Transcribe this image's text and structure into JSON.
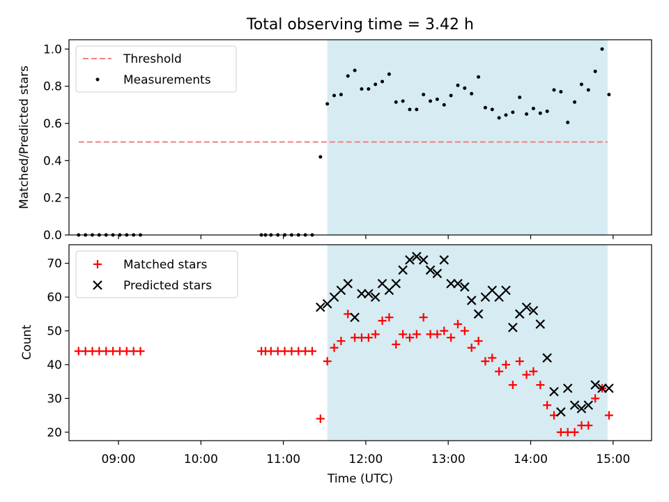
{
  "figure": {
    "title": "Total observing time = 3.42 h",
    "xlabel": "Time (UTC)",
    "x_ticks": [
      "09:00",
      "10:00",
      "11:00",
      "12:00",
      "13:00",
      "14:00",
      "15:00"
    ]
  },
  "chart_data": [
    {
      "type": "scatter",
      "ylabel": "Matched/Predicted stars",
      "xlim": [
        "08:24",
        "15:28"
      ],
      "ylim": [
        0,
        1.05
      ],
      "y_ticks": [
        "0.0",
        "0.2",
        "0.4",
        "0.6",
        "0.8",
        "1.0"
      ],
      "shaded_interval": [
        "11:32",
        "14:56"
      ],
      "shade_color": "#add8e6",
      "legend_position": "upper-left",
      "threshold": {
        "name": "Threshold",
        "value": 0.5,
        "x_range": [
          "08:31",
          "14:56"
        ],
        "color": "#f08080"
      },
      "series": [
        {
          "name": "Measurements",
          "marker": "dot",
          "color": "#000000",
          "x": [
            "08:31",
            "08:36",
            "08:41",
            "08:46",
            "08:51",
            "08:56",
            "09:01",
            "09:06",
            "09:11",
            "09:16",
            "10:44",
            "10:47",
            "10:51",
            "10:56",
            "11:01",
            "11:06",
            "11:11",
            "11:16",
            "11:21",
            "11:27",
            "11:32",
            "11:37",
            "11:42",
            "11:47",
            "11:52",
            "11:57",
            "12:02",
            "12:07",
            "12:12",
            "12:17",
            "12:22",
            "12:27",
            "12:32",
            "12:37",
            "12:42",
            "12:47",
            "12:52",
            "12:57",
            "13:02",
            "13:07",
            "13:12",
            "13:17",
            "13:22",
            "13:27",
            "13:32",
            "13:37",
            "13:42",
            "13:47",
            "13:52",
            "13:57",
            "14:02",
            "14:07",
            "14:12",
            "14:17",
            "14:22",
            "14:27",
            "14:32",
            "14:37",
            "14:42",
            "14:47",
            "14:52",
            "14:57"
          ],
          "y": [
            0,
            0,
            0,
            0,
            0,
            0,
            0,
            0,
            0,
            0,
            0,
            0,
            0,
            0,
            0,
            0,
            0,
            0,
            0,
            0.42,
            0.705,
            0.75,
            0.755,
            0.855,
            0.885,
            0.785,
            0.785,
            0.81,
            0.825,
            0.865,
            0.715,
            0.72,
            0.675,
            0.675,
            0.755,
            0.72,
            0.73,
            0.7,
            0.75,
            0.805,
            0.79,
            0.76,
            0.85,
            0.685,
            0.675,
            0.63,
            0.645,
            0.66,
            0.74,
            0.65,
            0.68,
            0.655,
            0.665,
            0.78,
            0.77,
            0.605,
            0.715,
            0.81,
            0.78,
            0.88,
            1.0,
            0.755
          ]
        }
      ]
    },
    {
      "type": "scatter",
      "ylabel": "Count",
      "xlim": [
        "08:24",
        "15:28"
      ],
      "ylim": [
        17.5,
        75.5
      ],
      "y_ticks": [
        "20",
        "30",
        "40",
        "50",
        "60",
        "70"
      ],
      "shaded_interval": [
        "11:32",
        "14:56"
      ],
      "shade_color": "#add8e6",
      "legend_position": "upper-left",
      "series": [
        {
          "name": "Matched stars",
          "marker": "plus",
          "color": "#ff0000",
          "x": [
            "08:31",
            "08:36",
            "08:41",
            "08:46",
            "08:51",
            "08:56",
            "09:01",
            "09:06",
            "09:11",
            "09:16",
            "10:44",
            "10:47",
            "10:51",
            "10:56",
            "11:01",
            "11:06",
            "11:11",
            "11:16",
            "11:21",
            "11:27",
            "11:32",
            "11:37",
            "11:42",
            "11:47",
            "11:52",
            "11:57",
            "12:02",
            "12:07",
            "12:12",
            "12:17",
            "12:22",
            "12:27",
            "12:32",
            "12:37",
            "12:42",
            "12:47",
            "12:52",
            "12:57",
            "13:02",
            "13:07",
            "13:12",
            "13:17",
            "13:22",
            "13:27",
            "13:32",
            "13:37",
            "13:42",
            "13:47",
            "13:52",
            "13:57",
            "14:02",
            "14:07",
            "14:12",
            "14:17",
            "14:22",
            "14:27",
            "14:32",
            "14:37",
            "14:42",
            "14:47",
            "14:52",
            "14:57"
          ],
          "y": [
            44,
            44,
            44,
            44,
            44,
            44,
            44,
            44,
            44,
            44,
            44,
            44,
            44,
            44,
            44,
            44,
            44,
            44,
            44,
            24,
            41,
            45,
            47,
            55,
            48,
            48,
            48,
            49,
            53,
            54,
            46,
            49,
            48,
            49,
            54,
            49,
            49,
            50,
            48,
            52,
            50,
            45,
            47,
            41,
            42,
            38,
            40,
            34,
            41,
            37,
            38,
            34,
            28,
            25,
            20,
            20,
            20,
            22,
            22,
            30,
            33,
            25
          ]
        },
        {
          "name": "Predicted stars",
          "marker": "x",
          "color": "#000000",
          "x": [
            "11:27",
            "11:32",
            "11:37",
            "11:42",
            "11:47",
            "11:52",
            "11:57",
            "12:02",
            "12:07",
            "12:12",
            "12:17",
            "12:22",
            "12:27",
            "12:32",
            "12:37",
            "12:42",
            "12:47",
            "12:52",
            "12:57",
            "13:02",
            "13:07",
            "13:12",
            "13:17",
            "13:22",
            "13:27",
            "13:32",
            "13:37",
            "13:42",
            "13:47",
            "13:52",
            "13:57",
            "14:02",
            "14:07",
            "14:12",
            "14:17",
            "14:22",
            "14:27",
            "14:32",
            "14:37",
            "14:42",
            "14:47",
            "14:52",
            "14:57"
          ],
          "y": [
            57,
            58,
            60,
            62,
            64,
            54,
            61,
            61,
            60,
            64,
            62,
            64,
            68,
            71,
            72,
            71,
            68,
            67,
            71,
            64,
            64,
            63,
            59,
            55,
            60,
            62,
            60,
            62,
            51,
            55,
            57,
            56,
            52,
            42,
            32,
            26,
            33,
            28,
            27,
            28,
            34,
            33,
            33
          ]
        }
      ]
    }
  ]
}
